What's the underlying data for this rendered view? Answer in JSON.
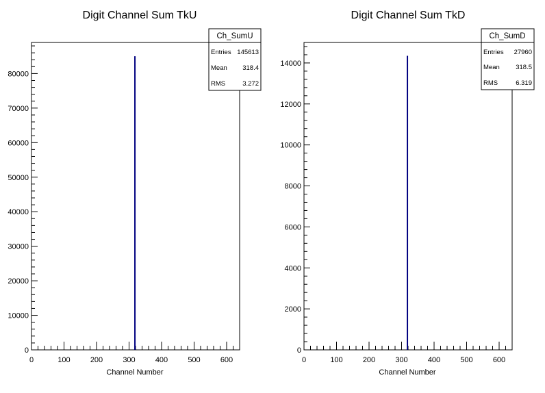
{
  "chart_data": [
    {
      "type": "bar",
      "title": "Digit Channel Sum TkU",
      "xlabel": "Channel Number",
      "ylabel": "",
      "xlim": [
        0,
        640
      ],
      "ylim": [
        0,
        89000
      ],
      "x_ticks": [
        "0",
        "100",
        "200",
        "300",
        "400",
        "500",
        "600"
      ],
      "y_ticks": [
        "0",
        "10000",
        "20000",
        "30000",
        "40000",
        "50000",
        "60000",
        "70000",
        "80000"
      ],
      "bars": [
        {
          "x": 318,
          "value": 85000
        }
      ],
      "color": "#000080",
      "stats": {
        "name": "Ch_SumU",
        "rows": [
          {
            "label": "Entries",
            "value": "145613"
          },
          {
            "label": "Mean",
            "value": "318.4"
          },
          {
            "label": "RMS",
            "value": "3.272"
          }
        ]
      }
    },
    {
      "type": "bar",
      "title": "Digit Channel Sum TkD",
      "xlabel": "Channel Number",
      "ylabel": "",
      "xlim": [
        0,
        640
      ],
      "ylim": [
        0,
        15000
      ],
      "x_ticks": [
        "0",
        "100",
        "200",
        "300",
        "400",
        "500",
        "600"
      ],
      "y_ticks": [
        "0",
        "2000",
        "4000",
        "6000",
        "8000",
        "10000",
        "12000",
        "14000"
      ],
      "bars": [
        {
          "x": 318,
          "value": 14350
        }
      ],
      "color": "#000080",
      "stats": {
        "name": "Ch_SumD",
        "rows": [
          {
            "label": "Entries",
            "value": "27960"
          },
          {
            "label": "Mean",
            "value": "318.5"
          },
          {
            "label": "RMS",
            "value": "6.319"
          }
        ]
      }
    }
  ]
}
